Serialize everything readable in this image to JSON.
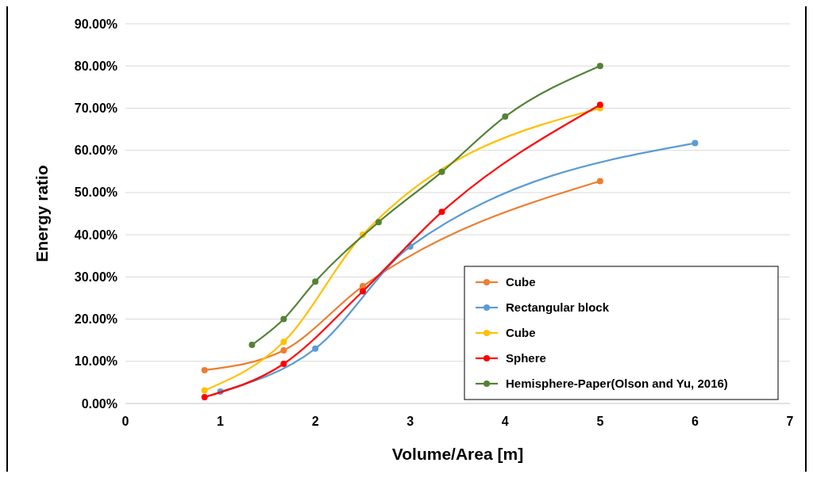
{
  "chart_data": {
    "type": "line",
    "xlabel": "Volume/Area [m]",
    "ylabel": "Energy ratio",
    "xlim": [
      0,
      7
    ],
    "xticks": [
      0,
      1,
      2,
      3,
      4,
      5,
      6,
      7
    ],
    "ylim": [
      0,
      0.9
    ],
    "yticks": [
      {
        "value": 0,
        "label": "0.00%"
      },
      {
        "value": 0.1,
        "label": "10.00%"
      },
      {
        "value": 0.2,
        "label": "20.00%"
      },
      {
        "value": 0.3,
        "label": "30.00%"
      },
      {
        "value": 0.4,
        "label": "40.00%"
      },
      {
        "value": 0.5,
        "label": "50.00%"
      },
      {
        "value": 0.6,
        "label": "60.00%"
      },
      {
        "value": 0.7,
        "label": "70.00%"
      },
      {
        "value": 0.8,
        "label": "80.00%"
      },
      {
        "value": 0.9,
        "label": "90.00%"
      }
    ],
    "grid": "y",
    "legend": "bottom right",
    "marker": "circle",
    "line_style": "solid",
    "series": [
      {
        "name": "Cube",
        "color": "#ed7d31",
        "x": [
          0.833,
          1.667,
          2.5,
          5
        ],
        "values": [
          0.079,
          0.126,
          0.278,
          0.527
        ]
      },
      {
        "name": "Rectangular block",
        "color": "#5b9bd5",
        "x": [
          1,
          2,
          3,
          6
        ],
        "values": [
          0.028,
          0.13,
          0.372,
          0.617
        ]
      },
      {
        "name": "Cube",
        "color": "#ffc000",
        "x": [
          0.833,
          1.667,
          2.5,
          5
        ],
        "values": [
          0.031,
          0.146,
          0.4,
          0.7
        ]
      },
      {
        "name": "Sphere",
        "color": "#ff0000",
        "x": [
          0.833,
          1.667,
          2.5,
          3.333,
          5
        ],
        "values": [
          0.015,
          0.094,
          0.266,
          0.454,
          0.708
        ]
      },
      {
        "name": "Hemisphere-Paper(Olson and Yu, 2016)",
        "color": "#548235",
        "x": [
          1.333,
          1.667,
          2,
          2.667,
          3.333,
          4,
          5
        ],
        "values": [
          0.139,
          0.2,
          0.289,
          0.43,
          0.549,
          0.68,
          0.8
        ]
      }
    ]
  }
}
